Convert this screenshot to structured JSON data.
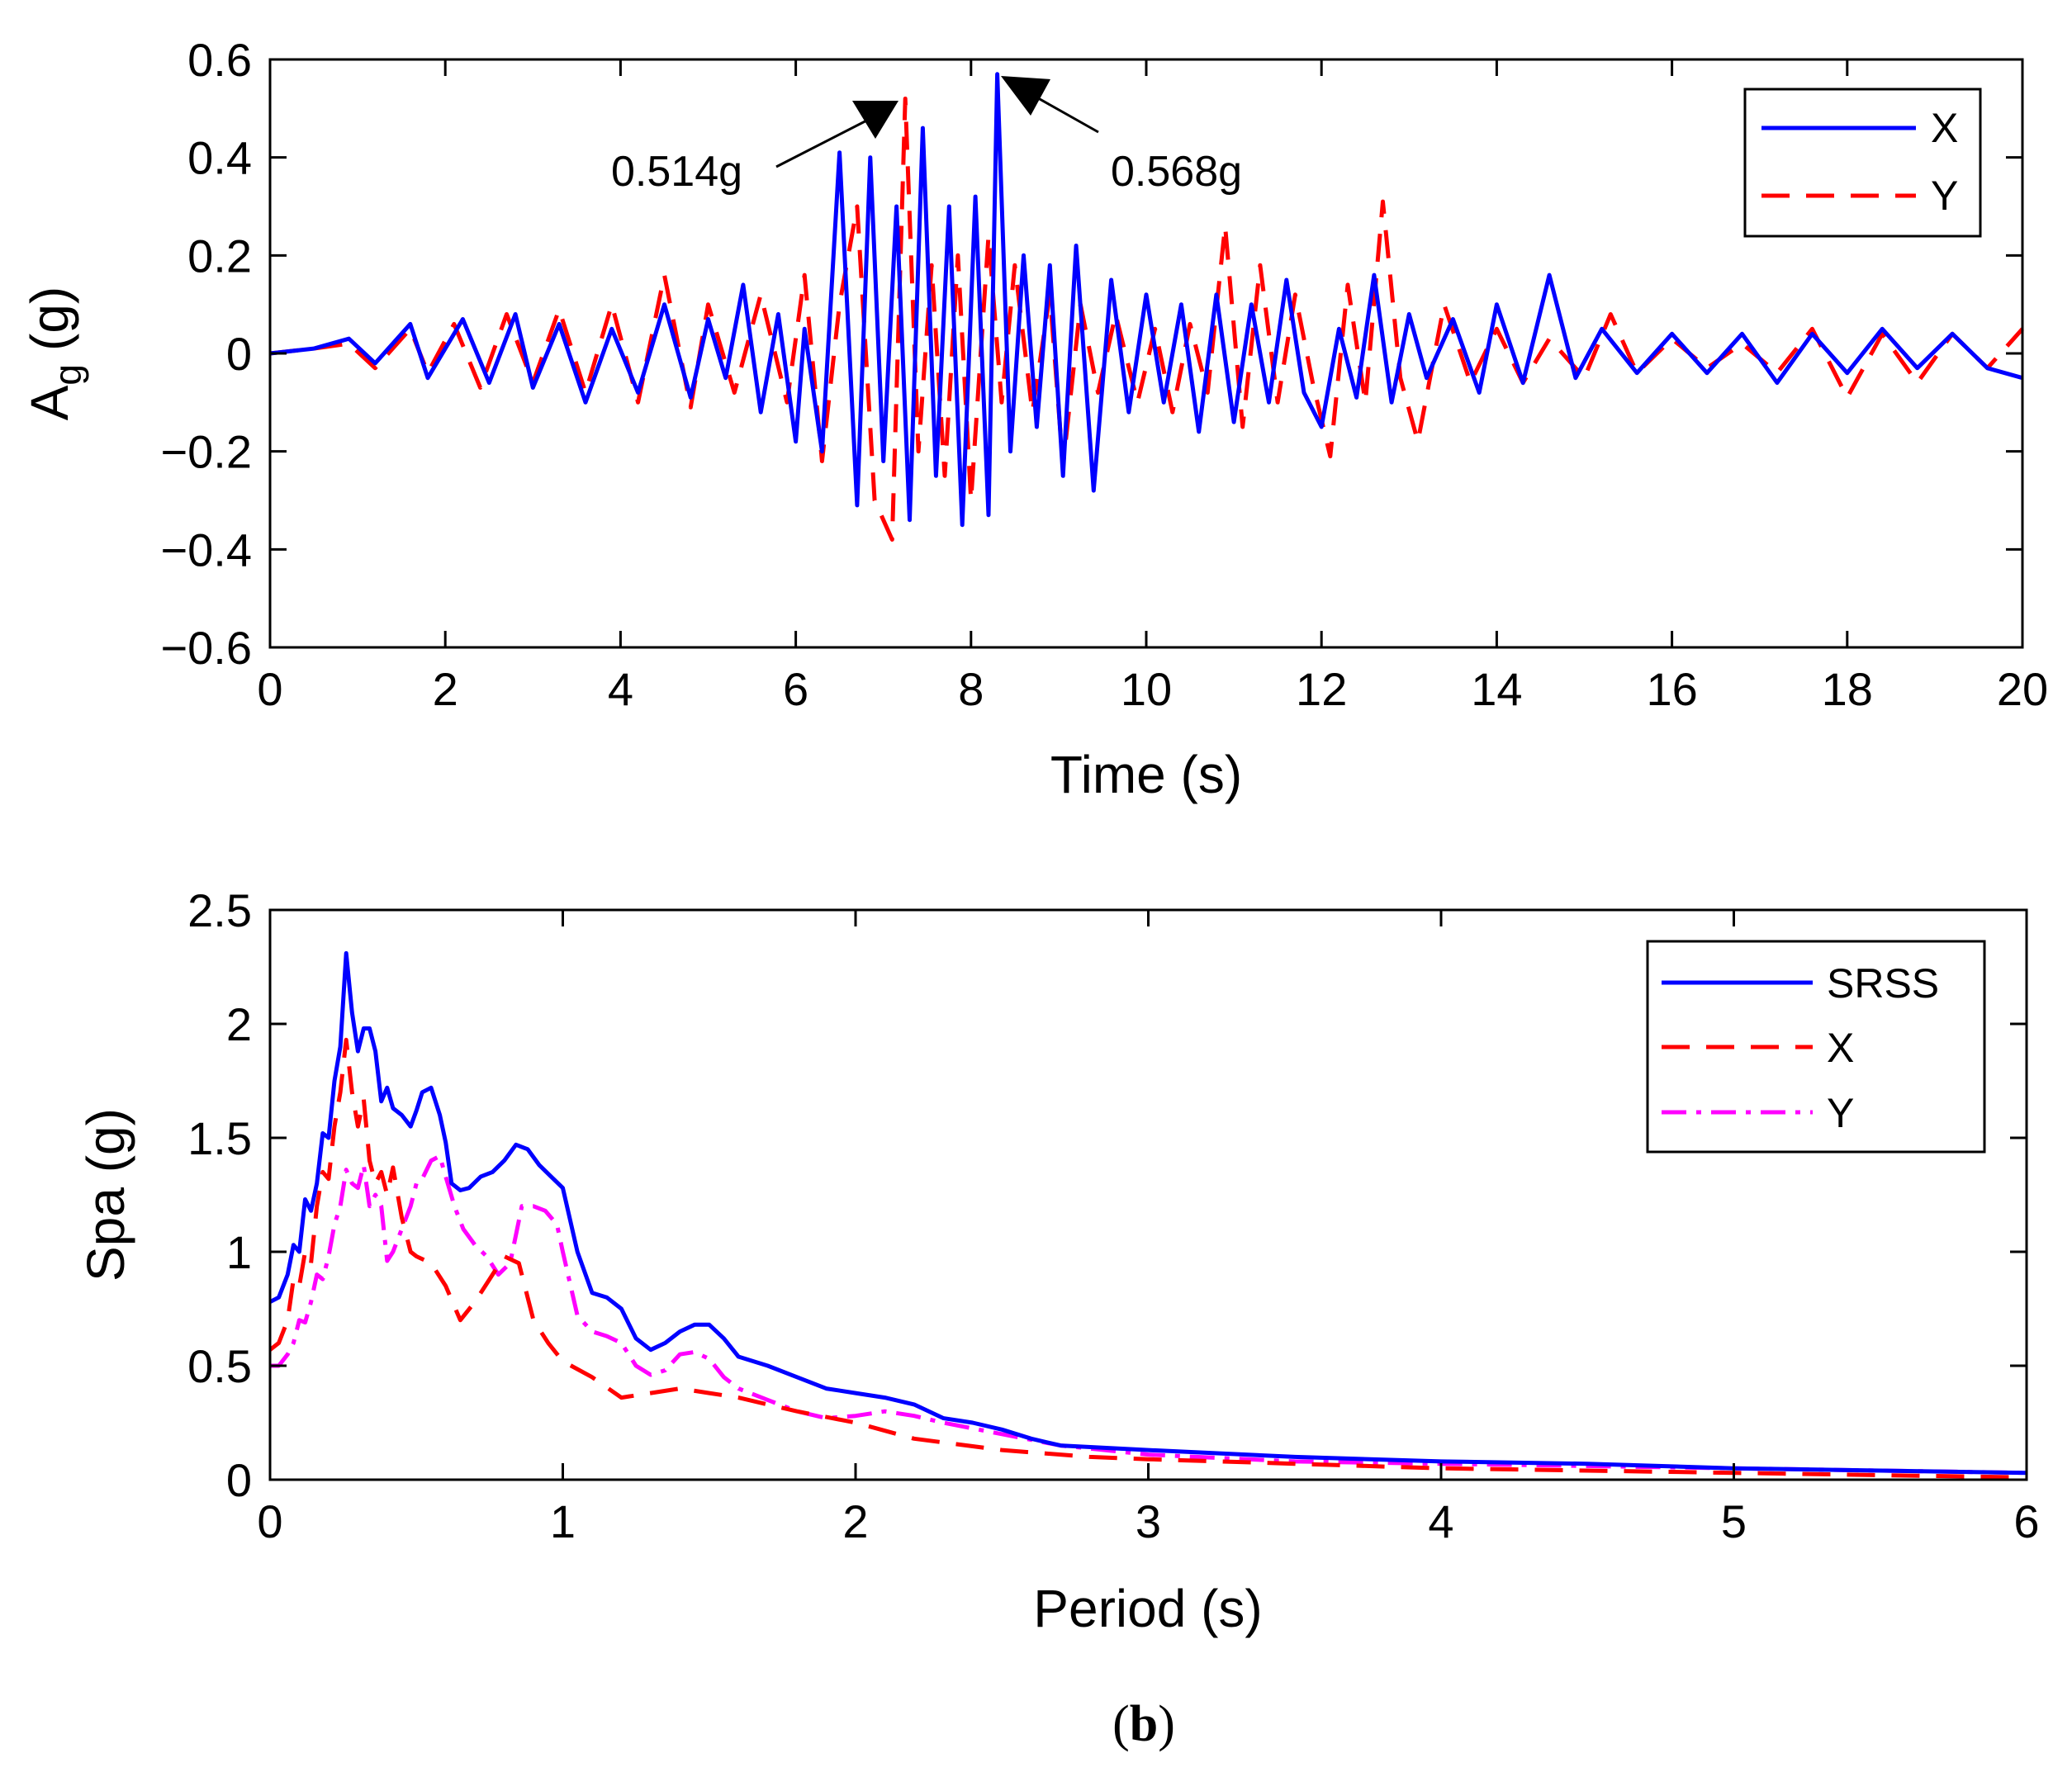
{
  "chart_data": [
    {
      "type": "line",
      "panel": "top",
      "title": "",
      "xlabel": "Time (s)",
      "ylabel_main": "A",
      "ylabel_sub": "g",
      "ylabel_unit": "(g)",
      "xlim": [
        0,
        20
      ],
      "ylim": [
        -0.6,
        0.6
      ],
      "xticks": [
        0,
        2,
        4,
        6,
        8,
        10,
        12,
        14,
        16,
        18,
        20
      ],
      "xtick_labels": [
        "0",
        "2",
        "4",
        "6",
        "8",
        "10",
        "12",
        "14",
        "16",
        "18",
        "20"
      ],
      "yticks": [
        -0.6,
        -0.4,
        -0.2,
        0,
        0.2,
        0.4,
        0.6
      ],
      "ytick_labels": [
        "−0.6",
        "−0.4",
        "−0.2",
        "0",
        "0.2",
        "0.4",
        "0.6"
      ],
      "grid": false,
      "legend_position": "top-right",
      "series": [
        {
          "name": "X",
          "color": "#0000ff",
          "style": "solid",
          "x": [
            0,
            0.5,
            0.9,
            1.2,
            1.6,
            1.8,
            2.2,
            2.5,
            2.8,
            3.0,
            3.3,
            3.6,
            3.9,
            4.2,
            4.5,
            4.8,
            5.0,
            5.2,
            5.4,
            5.6,
            5.8,
            6.0,
            6.1,
            6.3,
            6.5,
            6.7,
            6.85,
            7.0,
            7.15,
            7.3,
            7.45,
            7.6,
            7.75,
            7.9,
            8.05,
            8.2,
            8.3,
            8.45,
            8.6,
            8.75,
            8.9,
            9.05,
            9.2,
            9.4,
            9.6,
            9.8,
            10.0,
            10.2,
            10.4,
            10.6,
            10.8,
            11.0,
            11.2,
            11.4,
            11.6,
            11.8,
            12.0,
            12.2,
            12.4,
            12.6,
            12.8,
            13.0,
            13.2,
            13.5,
            13.8,
            14.0,
            14.3,
            14.6,
            14.9,
            15.2,
            15.6,
            16.0,
            16.4,
            16.8,
            17.2,
            17.6,
            18.0,
            18.4,
            18.8,
            19.2,
            19.6,
            20.0
          ],
          "y": [
            0,
            0.01,
            0.03,
            -0.02,
            0.06,
            -0.05,
            0.07,
            -0.06,
            0.08,
            -0.07,
            0.06,
            -0.1,
            0.05,
            -0.08,
            0.1,
            -0.09,
            0.07,
            -0.05,
            0.14,
            -0.12,
            0.08,
            -0.18,
            0.05,
            -0.2,
            0.41,
            -0.31,
            0.4,
            -0.22,
            0.3,
            -0.34,
            0.46,
            -0.25,
            0.3,
            -0.35,
            0.32,
            -0.33,
            0.57,
            -0.2,
            0.2,
            -0.15,
            0.18,
            -0.25,
            0.22,
            -0.28,
            0.15,
            -0.12,
            0.12,
            -0.1,
            0.1,
            -0.16,
            0.12,
            -0.14,
            0.1,
            -0.1,
            0.15,
            -0.08,
            -0.15,
            0.05,
            -0.09,
            0.16,
            -0.1,
            0.08,
            -0.05,
            0.07,
            -0.08,
            0.1,
            -0.06,
            0.16,
            -0.05,
            0.05,
            -0.04,
            0.04,
            -0.04,
            0.04,
            -0.06,
            0.04,
            -0.04,
            0.05,
            -0.03,
            0.04,
            -0.03,
            -0.05
          ]
        },
        {
          "name": "Y",
          "color": "#ff0000",
          "style": "dashed",
          "x": [
            0,
            0.5,
            0.9,
            1.2,
            1.6,
            1.8,
            2.1,
            2.4,
            2.7,
            3.0,
            3.3,
            3.6,
            3.9,
            4.2,
            4.5,
            4.8,
            5.0,
            5.3,
            5.6,
            5.9,
            6.1,
            6.3,
            6.5,
            6.7,
            6.9,
            7.1,
            7.25,
            7.4,
            7.55,
            7.7,
            7.85,
            8.0,
            8.2,
            8.35,
            8.5,
            8.7,
            8.9,
            9.05,
            9.25,
            9.45,
            9.65,
            9.9,
            10.1,
            10.3,
            10.5,
            10.7,
            10.9,
            11.1,
            11.3,
            11.5,
            11.7,
            11.9,
            12.1,
            12.3,
            12.5,
            12.7,
            12.9,
            13.1,
            13.4,
            13.7,
            14.0,
            14.3,
            14.6,
            15.0,
            15.3,
            15.6,
            16.0,
            16.4,
            16.8,
            17.2,
            17.6,
            18.0,
            18.4,
            18.8,
            19.2,
            19.6,
            20.0
          ],
          "y": [
            0,
            0.01,
            0.02,
            -0.03,
            0.05,
            -0.04,
            0.06,
            -0.07,
            0.08,
            -0.06,
            0.09,
            -0.08,
            0.1,
            -0.1,
            0.16,
            -0.11,
            0.1,
            -0.08,
            0.12,
            -0.1,
            0.16,
            -0.22,
            0.1,
            0.3,
            -0.3,
            -0.38,
            0.52,
            -0.2,
            0.18,
            -0.25,
            0.2,
            -0.3,
            0.24,
            -0.1,
            0.18,
            -0.12,
            0.12,
            -0.23,
            0.1,
            -0.08,
            0.08,
            -0.1,
            0.05,
            -0.12,
            0.06,
            -0.08,
            0.26,
            -0.15,
            0.18,
            -0.1,
            0.12,
            -0.06,
            -0.21,
            0.14,
            -0.1,
            0.31,
            -0.05,
            -0.18,
            0.1,
            -0.06,
            0.05,
            -0.06,
            0.03,
            -0.05,
            0.08,
            -0.04,
            0.03,
            -0.03,
            0.02,
            -0.04,
            0.05,
            -0.09,
            0.04,
            -0.06,
            0.04,
            -0.03,
            0.05
          ]
        }
      ],
      "annotations": [
        {
          "text": "0.514g",
          "target_x": 6.9,
          "target_y": 0.514
        },
        {
          "text": "0.568g",
          "target_x": 8.35,
          "target_y": 0.568
        }
      ]
    },
    {
      "type": "line",
      "panel": "bottom",
      "title": "",
      "xlabel": "Period (s)",
      "ylabel": "Spa (g)",
      "xlim": [
        0,
        6
      ],
      "ylim": [
        0,
        2.5
      ],
      "xticks": [
        0,
        1,
        2,
        3,
        4,
        5,
        6
      ],
      "xtick_labels": [
        "0",
        "1",
        "2",
        "3",
        "4",
        "5",
        "6"
      ],
      "yticks": [
        0,
        0.5,
        1,
        1.5,
        2,
        2.5
      ],
      "ytick_labels": [
        "0",
        "0.5",
        "1",
        "1.5",
        "2",
        "2.5"
      ],
      "grid": false,
      "legend_position": "top-right",
      "series": [
        {
          "name": "SRSS",
          "color": "#0000ff",
          "style": "solid",
          "x": [
            0,
            0.03,
            0.06,
            0.08,
            0.1,
            0.12,
            0.14,
            0.16,
            0.18,
            0.2,
            0.22,
            0.24,
            0.26,
            0.28,
            0.3,
            0.32,
            0.34,
            0.36,
            0.38,
            0.4,
            0.42,
            0.45,
            0.48,
            0.5,
            0.52,
            0.55,
            0.58,
            0.6,
            0.62,
            0.65,
            0.68,
            0.72,
            0.76,
            0.8,
            0.84,
            0.88,
            0.92,
            0.96,
            1.0,
            1.05,
            1.1,
            1.15,
            1.2,
            1.25,
            1.3,
            1.35,
            1.4,
            1.45,
            1.5,
            1.55,
            1.6,
            1.7,
            1.8,
            1.9,
            2.0,
            2.1,
            2.2,
            2.3,
            2.4,
            2.5,
            2.6,
            2.7,
            3.0,
            3.5,
            4.0,
            4.5,
            5.0,
            5.5,
            6.0
          ],
          "y": [
            0.78,
            0.8,
            0.9,
            1.03,
            1.0,
            1.23,
            1.18,
            1.3,
            1.52,
            1.5,
            1.75,
            1.9,
            2.31,
            2.05,
            1.88,
            1.98,
            1.98,
            1.88,
            1.66,
            1.72,
            1.63,
            1.6,
            1.55,
            1.62,
            1.7,
            1.72,
            1.6,
            1.48,
            1.3,
            1.27,
            1.28,
            1.33,
            1.35,
            1.4,
            1.47,
            1.45,
            1.38,
            1.33,
            1.28,
            1.0,
            0.82,
            0.8,
            0.75,
            0.62,
            0.57,
            0.6,
            0.65,
            0.68,
            0.68,
            0.62,
            0.54,
            0.5,
            0.45,
            0.4,
            0.38,
            0.36,
            0.33,
            0.27,
            0.25,
            0.22,
            0.18,
            0.15,
            0.13,
            0.1,
            0.08,
            0.07,
            0.05,
            0.04,
            0.03
          ]
        },
        {
          "name": "X",
          "color": "#ff0000",
          "style": "dashed",
          "x": [
            0,
            0.03,
            0.06,
            0.08,
            0.1,
            0.12,
            0.14,
            0.16,
            0.18,
            0.2,
            0.22,
            0.24,
            0.26,
            0.28,
            0.3,
            0.32,
            0.34,
            0.36,
            0.38,
            0.4,
            0.42,
            0.45,
            0.48,
            0.5,
            0.55,
            0.6,
            0.65,
            0.7,
            0.75,
            0.8,
            0.85,
            0.9,
            0.95,
            1.0,
            1.1,
            1.2,
            1.3,
            1.4,
            1.5,
            1.6,
            1.8,
            2.0,
            2.2,
            2.5,
            2.8,
            3.0,
            3.5,
            4.0,
            4.5,
            5.0,
            5.5,
            6.0
          ],
          "y": [
            0.57,
            0.6,
            0.7,
            0.88,
            0.85,
            1.0,
            0.95,
            1.2,
            1.35,
            1.32,
            1.55,
            1.7,
            1.93,
            1.7,
            1.55,
            1.67,
            1.4,
            1.3,
            1.35,
            1.25,
            1.37,
            1.15,
            1.0,
            0.98,
            0.95,
            0.85,
            0.7,
            0.78,
            0.88,
            0.98,
            0.95,
            0.7,
            0.6,
            0.52,
            0.45,
            0.36,
            0.38,
            0.4,
            0.38,
            0.36,
            0.3,
            0.25,
            0.18,
            0.13,
            0.1,
            0.09,
            0.07,
            0.05,
            0.04,
            0.03,
            0.02,
            0.01
          ]
        },
        {
          "name": "Y",
          "color": "#ff00ff",
          "style": "dashdot",
          "x": [
            0,
            0.03,
            0.06,
            0.08,
            0.1,
            0.12,
            0.14,
            0.16,
            0.18,
            0.2,
            0.22,
            0.24,
            0.26,
            0.28,
            0.3,
            0.32,
            0.34,
            0.36,
            0.38,
            0.4,
            0.42,
            0.45,
            0.48,
            0.5,
            0.52,
            0.55,
            0.58,
            0.6,
            0.63,
            0.66,
            0.7,
            0.74,
            0.78,
            0.82,
            0.86,
            0.9,
            0.94,
            0.98,
            1.0,
            1.05,
            1.1,
            1.15,
            1.2,
            1.25,
            1.3,
            1.35,
            1.4,
            1.45,
            1.5,
            1.55,
            1.6,
            1.7,
            1.8,
            1.9,
            2.0,
            2.1,
            2.2,
            2.3,
            2.5,
            2.7,
            3.0,
            3.5,
            4.0,
            4.5,
            5.0,
            5.5,
            6.0
          ],
          "y": [
            0.5,
            0.5,
            0.55,
            0.6,
            0.7,
            0.69,
            0.78,
            0.9,
            0.88,
            0.98,
            1.12,
            1.2,
            1.36,
            1.3,
            1.28,
            1.38,
            1.2,
            1.25,
            1.2,
            0.96,
            1.0,
            1.1,
            1.2,
            1.3,
            1.32,
            1.4,
            1.42,
            1.33,
            1.2,
            1.1,
            1.03,
            0.98,
            0.9,
            0.95,
            1.2,
            1.2,
            1.18,
            1.12,
            1.0,
            0.72,
            0.65,
            0.63,
            0.6,
            0.5,
            0.46,
            0.48,
            0.55,
            0.56,
            0.53,
            0.45,
            0.4,
            0.35,
            0.3,
            0.27,
            0.28,
            0.3,
            0.28,
            0.25,
            0.2,
            0.15,
            0.11,
            0.08,
            0.07,
            0.06,
            0.05,
            0.04,
            0.03
          ]
        }
      ]
    }
  ],
  "caption": {
    "open": "(",
    "letter": "b",
    "close": ")"
  }
}
